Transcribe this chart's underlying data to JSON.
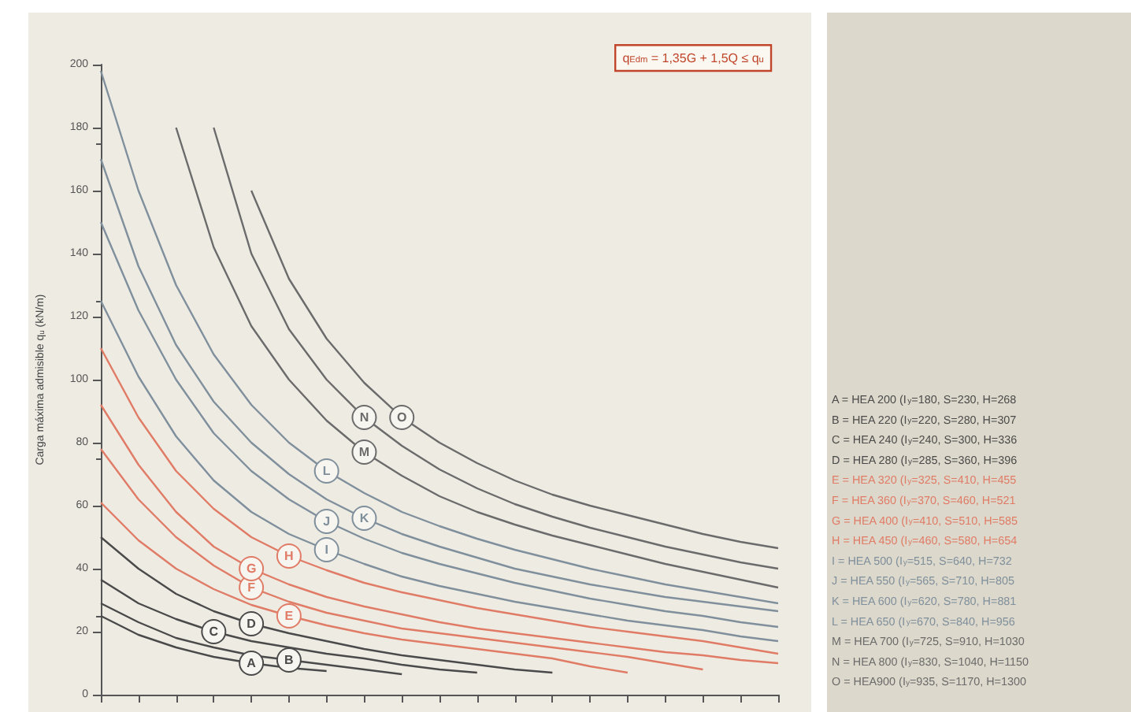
{
  "chart_data": {
    "type": "line",
    "ylabel": "Carga máxima admisible q$_{u}$ (kN/m)",
    "categories": [
      null,
      null,
      null,
      null,
      null,
      null,
      null,
      null,
      null,
      null,
      null,
      null,
      null,
      null,
      null,
      null,
      null,
      null,
      null
    ],
    "ylim": [
      0,
      200
    ],
    "yticks": [
      0,
      20,
      40,
      60,
      80,
      100,
      120,
      140,
      160,
      180,
      200
    ],
    "series": [
      {
        "name": "A",
        "color": "#4a4a4a",
        "values": [
          25,
          19,
          15,
          12,
          10,
          8.5,
          7.5,
          null,
          null,
          null,
          null,
          null,
          null,
          null,
          null,
          null,
          null,
          null,
          null
        ]
      },
      {
        "name": "B",
        "color": "#4a4a4a",
        "values": [
          29,
          23,
          18,
          15,
          12.5,
          11,
          9.5,
          8,
          6.5,
          null,
          null,
          null,
          null,
          null,
          null,
          null,
          null,
          null,
          null
        ]
      },
      {
        "name": "C",
        "color": "#4a4a4a",
        "values": [
          36.5,
          29,
          24,
          20,
          17,
          15,
          13,
          11.5,
          9.5,
          8,
          7,
          null,
          null,
          null,
          null,
          null,
          null,
          null,
          null
        ]
      },
      {
        "name": "D",
        "color": "#4a4a4a",
        "values": [
          50,
          40,
          32,
          26.5,
          22.5,
          19.5,
          17,
          14.5,
          12.5,
          11,
          9.5,
          8,
          7,
          null,
          null,
          null,
          null,
          null,
          null
        ]
      },
      {
        "name": "E",
        "color": "#e07b66",
        "values": [
          61,
          49,
          40,
          33.5,
          28.5,
          25,
          22,
          19.5,
          17.5,
          16,
          14.5,
          13,
          11.5,
          9,
          7,
          null,
          null,
          null,
          null
        ]
      },
      {
        "name": "F",
        "color": "#e07b66",
        "values": [
          78,
          62,
          50,
          41,
          34,
          29.5,
          26,
          23.5,
          21,
          19.5,
          18,
          16.5,
          15,
          13.5,
          12,
          10,
          8,
          null,
          null
        ]
      },
      {
        "name": "G",
        "color": "#e07b66",
        "values": [
          92,
          73,
          58,
          47,
          40,
          35,
          31,
          28,
          25.5,
          23,
          21,
          19.5,
          18,
          16.5,
          15,
          13.5,
          12.5,
          11,
          10
        ]
      },
      {
        "name": "H",
        "color": "#e07b66",
        "values": [
          110,
          88,
          71,
          59,
          50,
          44,
          39.5,
          35.5,
          32.5,
          30,
          27.5,
          25.5,
          23.5,
          21.5,
          20,
          18.5,
          17,
          15,
          13
        ]
      },
      {
        "name": "I",
        "color": "#7f8f9c",
        "values": [
          125,
          101,
          82,
          68,
          58,
          51,
          46,
          41.5,
          37.5,
          34.5,
          32,
          29.5,
          27.5,
          25.5,
          23.5,
          22,
          20.5,
          18.5,
          17
        ]
      },
      {
        "name": "J",
        "color": "#7f8f9c",
        "values": [
          150,
          122,
          100,
          83,
          71,
          62,
          55,
          49.5,
          45,
          41.5,
          38.5,
          35.5,
          33,
          30.5,
          28.5,
          26.5,
          25,
          23,
          21.5
        ]
      },
      {
        "name": "K",
        "color": "#7f8f9c",
        "values": [
          170,
          136,
          111,
          93,
          80,
          70,
          62,
          56,
          51,
          47,
          43.5,
          40,
          37.5,
          35,
          33,
          31,
          29.5,
          28,
          26.5
        ]
      },
      {
        "name": "L",
        "color": "#7f8f9c",
        "values": [
          198,
          160,
          130,
          108,
          92,
          80,
          71,
          64,
          58,
          53.5,
          49.5,
          46,
          43,
          40,
          37.5,
          35,
          33,
          31,
          29
        ]
      },
      {
        "name": "M",
        "color": "#6b6b6b",
        "values": [
          null,
          null,
          180,
          142,
          117,
          100,
          87,
          77,
          69.5,
          63,
          58,
          54,
          50.5,
          47.5,
          44.5,
          41.5,
          39,
          36.5,
          34
        ]
      },
      {
        "name": "N",
        "color": "#6b6b6b",
        "values": [
          null,
          null,
          null,
          180,
          140,
          116,
          100,
          88,
          79,
          71.5,
          65.5,
          60.5,
          56.5,
          53,
          50,
          47,
          44.5,
          42,
          40
        ]
      },
      {
        "name": "O",
        "color": "#6b6b6b",
        "values": [
          null,
          null,
          null,
          null,
          160,
          132,
          113,
          99,
          88,
          80,
          73.5,
          68,
          63.5,
          60,
          57,
          54,
          51,
          48.5,
          46.5
        ]
      }
    ],
    "annotations": [
      "q$_{Edm}$ = 1,35G + 1,5Q ≤ q$_{u}$",
      "A = HEA 200 (I$_{y}$=180, S=230, H=268",
      "B = HEA 220 (I$_{y}$=220, S=280, H=307",
      "C = HEA 240 (I$_{y}$=240, S=300, H=336",
      "D = HEA 280 (I$_{y}$=285, S=360, H=396",
      "E = HEA 320 (I$_{y}$=325, S=410, H=455",
      "F = HEA 360 (I$_{y}$=370, S=460, H=521",
      "G = HEA 400 (I$_{y}$=410, S=510, H=585",
      "H = HEA 450 (I$_{y}$=460, S=580, H=654",
      "I = HEA 500 (I$_{y}$=515, S=640, H=732",
      "J = HEA 550 (I$_{y}$=565, S=710, H=805",
      "K = HEA 600 (I$_{y}$=620, S=780, H=881",
      "L = HEA 650 (I$_{y}$=670, S=840, H=956",
      "M = HEA 700 (I$_{y}$=725, S=910, H=1030",
      "N = HEA 800 (I$_{y}$=830, S=1040, H=1150",
      "O = HEA900 (I$_{y}$=935, S=1170, H=1300"
    ]
  }
}
